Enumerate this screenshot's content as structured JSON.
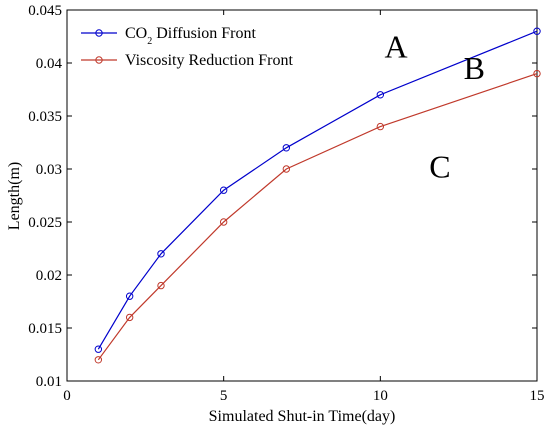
{
  "chart_data": {
    "type": "line",
    "xlabel": "Simulated Shut-in Time(day)",
    "ylabel": "Length(m)",
    "xlim": [
      0,
      15
    ],
    "ylim": [
      0.01,
      0.045
    ],
    "xticks": [
      "0",
      "5",
      "10",
      "15"
    ],
    "xtick_values": [
      0,
      5,
      10,
      15
    ],
    "yticks": [
      "0.01",
      "0.015",
      "0.02",
      "0.025",
      "0.03",
      "0.035",
      "0.04",
      "0.045"
    ],
    "ytick_values": [
      0.01,
      0.015,
      0.02,
      0.025,
      0.03,
      0.035,
      0.04,
      0.045
    ],
    "grid": false,
    "legend_placement": "top-left",
    "series": [
      {
        "name": "CO",
        "name_subscript": "2",
        "name_suffix": " Diffusion Front",
        "color": "#0000cc",
        "x": [
          1,
          2,
          3,
          5,
          7,
          10,
          15
        ],
        "y": [
          0.013,
          0.018,
          0.022,
          0.028,
          0.032,
          0.037,
          0.043
        ]
      },
      {
        "name": "Viscosity Reduction Front",
        "color": "#c0392b",
        "x": [
          1,
          2,
          3,
          5,
          7,
          10,
          15
        ],
        "y": [
          0.012,
          0.016,
          0.019,
          0.025,
          0.03,
          0.034,
          0.039
        ]
      }
    ],
    "annotations": [
      {
        "text": "A",
        "x": 10.5,
        "y": 0.0405
      },
      {
        "text": "B",
        "x": 13.0,
        "y": 0.0385
      },
      {
        "text": "C",
        "x": 11.9,
        "y": 0.0292
      }
    ]
  }
}
